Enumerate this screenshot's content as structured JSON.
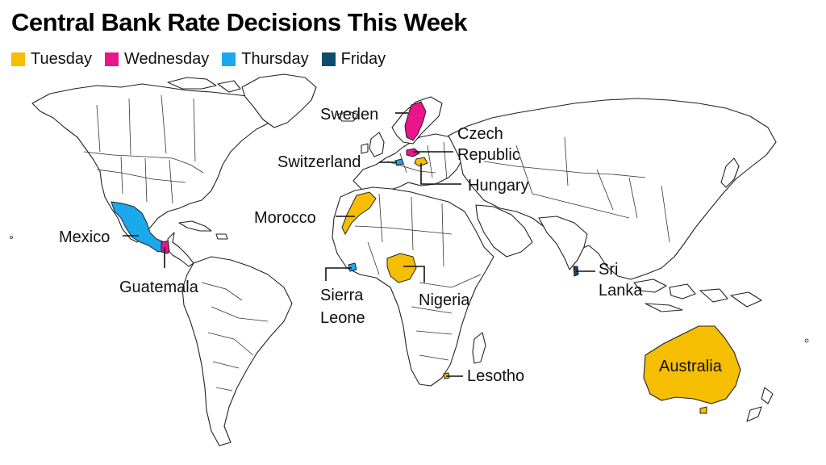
{
  "title": "Central Bank Rate Decisions This Week",
  "colors": {
    "tuesday": "#f6be00",
    "wednesday": "#e8158c",
    "thursday": "#1ba8ec",
    "friday": "#0f4b6e"
  },
  "legend": [
    {
      "label": "Tuesday",
      "color": "#f6be00"
    },
    {
      "label": "Wednesday",
      "color": "#e8158c"
    },
    {
      "label": "Thursday",
      "color": "#1ba8ec"
    },
    {
      "label": "Friday",
      "color": "#0f4b6e"
    }
  ],
  "countries": {
    "sweden": {
      "label": "Sweden",
      "day": "Wednesday"
    },
    "czech_republic": {
      "label_line1": "Czech",
      "label_line2": "Republic",
      "day": "Wednesday"
    },
    "switzerland": {
      "label": "Switzerland",
      "day": "Thursday"
    },
    "hungary": {
      "label": "Hungary",
      "day": "Tuesday"
    },
    "morocco": {
      "label": "Morocco",
      "day": "Tuesday"
    },
    "mexico": {
      "label": "Mexico",
      "day": "Thursday"
    },
    "guatemala": {
      "label": "Guatemala",
      "day": "Wednesday"
    },
    "sierra_leone": {
      "label_line1": "Sierra",
      "label_line2": "Leone",
      "day": "Thursday"
    },
    "nigeria": {
      "label": "Nigeria",
      "day": "Tuesday"
    },
    "sri_lanka": {
      "label_line1": "Sri",
      "label_line2": "Lanka",
      "day": "Friday"
    },
    "lesotho": {
      "label": "Lesotho",
      "day": "Tuesday"
    },
    "australia": {
      "label": "Australia",
      "day": "Tuesday"
    }
  }
}
